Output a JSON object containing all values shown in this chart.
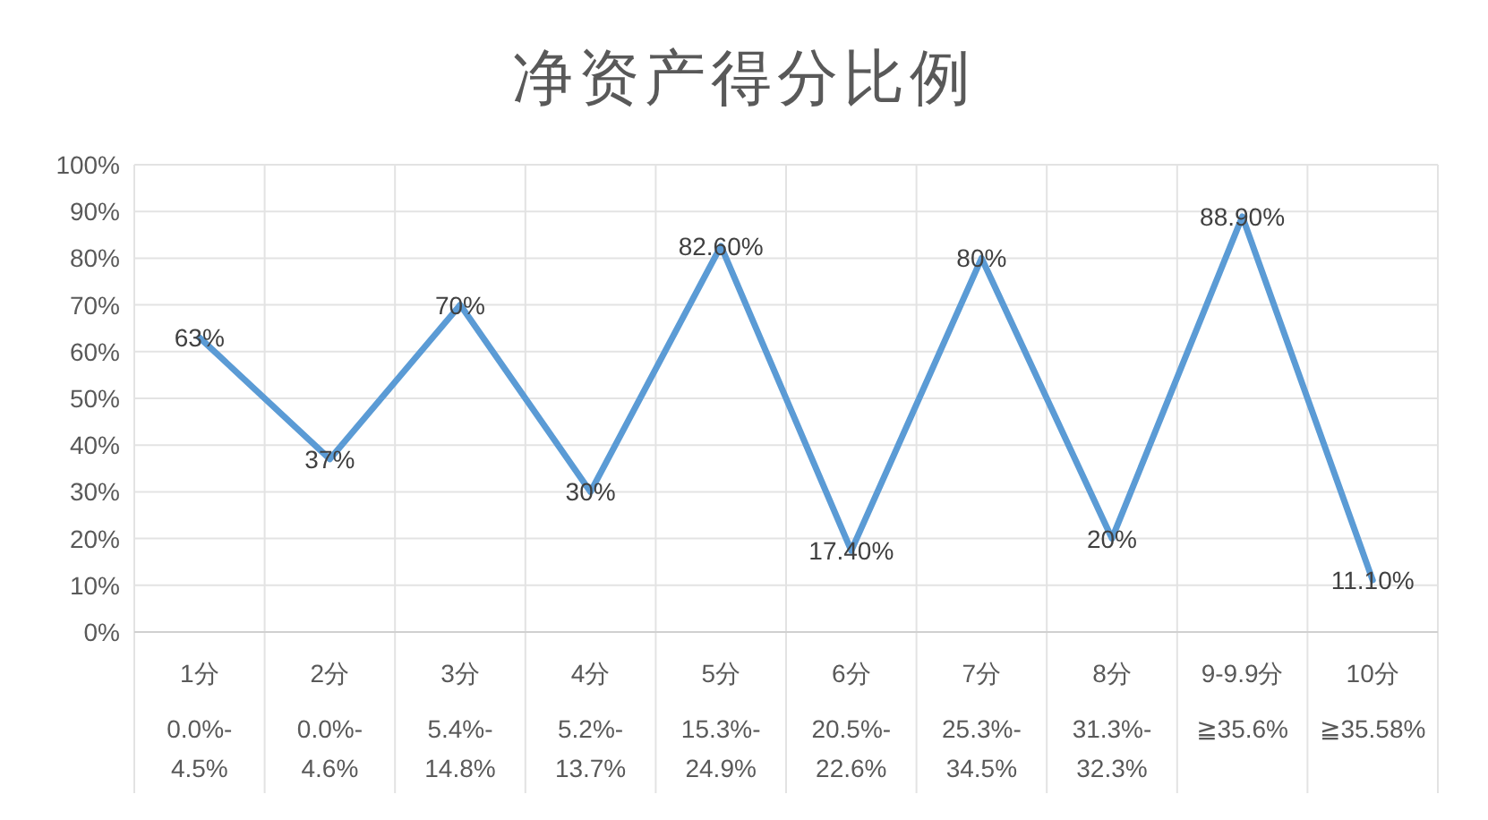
{
  "chart_data": {
    "type": "line",
    "title": "净资产得分比例",
    "categories": [
      "1分\n0.0%-\n4.5%",
      "2分\n0.0%-\n4.6%",
      "3分\n5.4%-\n14.8%",
      "4分\n5.2%-\n13.7%",
      "5分\n15.3%-\n24.9%",
      "6分\n20.5%-\n22.6%",
      "7分\n25.3%-\n34.5%",
      "8分\n31.3%-\n32.3%",
      "9-9.9分\n≧35.6%",
      "10分\n≧35.58%"
    ],
    "series": [
      {
        "color": "#5b9bd5",
        "values": [
          63,
          37,
          70,
          30,
          82.6,
          17.4,
          80,
          20,
          88.9,
          11.1
        ],
        "value_labels": [
          "63%",
          "37%",
          "70%",
          "30%",
          "82.60%",
          "17.40%",
          "80%",
          "20%",
          "88.90%",
          "11.10%"
        ]
      }
    ],
    "ylim": [
      0,
      100
    ],
    "yticks": [
      {
        "value": 0,
        "label": "0%"
      },
      {
        "value": 10,
        "label": "10%"
      },
      {
        "value": 20,
        "label": "20%"
      },
      {
        "value": 30,
        "label": "30%"
      },
      {
        "value": 40,
        "label": "40%"
      },
      {
        "value": 50,
        "label": "50%"
      },
      {
        "value": 60,
        "label": "60%"
      },
      {
        "value": 70,
        "label": "70%"
      },
      {
        "value": 80,
        "label": "80%"
      },
      {
        "value": 90,
        "label": "90%"
      },
      {
        "value": 100,
        "label": "100%"
      }
    ],
    "grid": true,
    "line_style": "solid",
    "marker": "none"
  }
}
